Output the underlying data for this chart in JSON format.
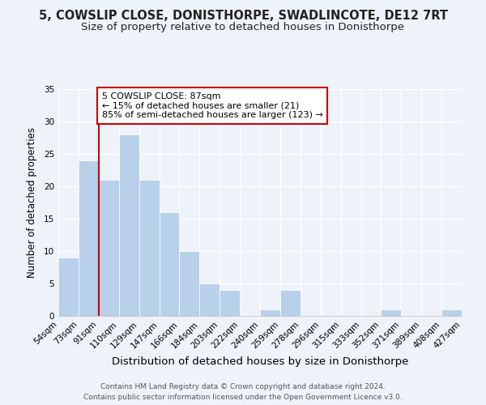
{
  "title": "5, COWSLIP CLOSE, DONISTHORPE, SWADLINCOTE, DE12 7RT",
  "subtitle": "Size of property relative to detached houses in Donisthorpe",
  "xlabel": "Distribution of detached houses by size in Donisthorpe",
  "ylabel": "Number of detached properties",
  "footer_lines": [
    "Contains HM Land Registry data © Crown copyright and database right 2024.",
    "Contains public sector information licensed under the Open Government Licence v3.0."
  ],
  "bin_labels": [
    "54sqm",
    "73sqm",
    "91sqm",
    "110sqm",
    "129sqm",
    "147sqm",
    "166sqm",
    "184sqm",
    "203sqm",
    "222sqm",
    "240sqm",
    "259sqm",
    "278sqm",
    "296sqm",
    "315sqm",
    "333sqm",
    "352sqm",
    "371sqm",
    "389sqm",
    "408sqm",
    "427sqm"
  ],
  "bar_heights": [
    9,
    24,
    21,
    28,
    21,
    16,
    10,
    5,
    4,
    0,
    1,
    4,
    0,
    0,
    0,
    0,
    1,
    0,
    0,
    1
  ],
  "bar_color": "#b8d0ea",
  "vline_x_index": 2,
  "vline_color": "#cc0000",
  "annotation_text": "5 COWSLIP CLOSE: 87sqm\n← 15% of detached houses are smaller (21)\n85% of semi-detached houses are larger (123) →",
  "annotation_box_edgecolor": "#cc0000",
  "annotation_box_facecolor": "#ffffff",
  "ylim": [
    0,
    35
  ],
  "yticks": [
    0,
    5,
    10,
    15,
    20,
    25,
    30,
    35
  ],
  "background_color": "#eef2f9",
  "grid_color": "#ffffff",
  "title_fontsize": 10.5,
  "subtitle_fontsize": 9.5,
  "xlabel_fontsize": 9.5,
  "ylabel_fontsize": 8.5,
  "tick_fontsize": 7.5,
  "annotation_fontsize": 8,
  "footer_fontsize": 6.5
}
